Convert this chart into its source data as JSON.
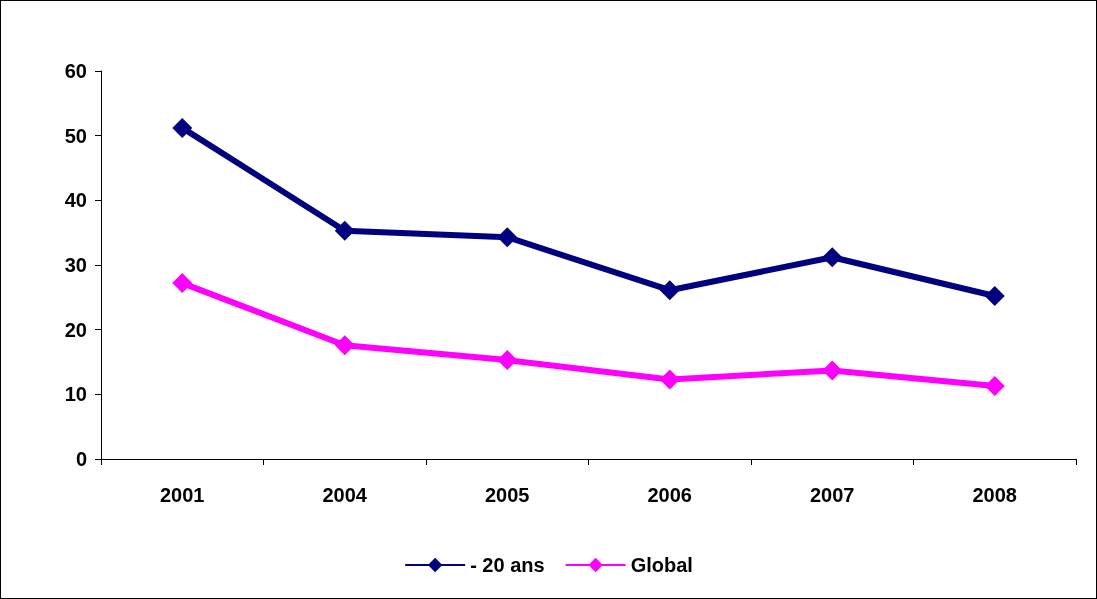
{
  "chart_data": {
    "type": "line",
    "categories": [
      "2001",
      "2004",
      "2005",
      "2006",
      "2007",
      "2008"
    ],
    "series": [
      {
        "name": "- 20 ans",
        "color": "#000080",
        "values": [
          51.2,
          35.3,
          34.3,
          26.1,
          31.2,
          25.2
        ]
      },
      {
        "name": "Global",
        "color": "#ff00ff",
        "values": [
          27.2,
          17.6,
          15.3,
          12.3,
          13.7,
          11.3
        ]
      }
    ],
    "ylim": [
      0,
      60
    ],
    "yticks": [
      0,
      10,
      20,
      30,
      40,
      50,
      60
    ],
    "grid": false,
    "legend": "bottom",
    "marker": "diamond",
    "line_style": "solid"
  }
}
